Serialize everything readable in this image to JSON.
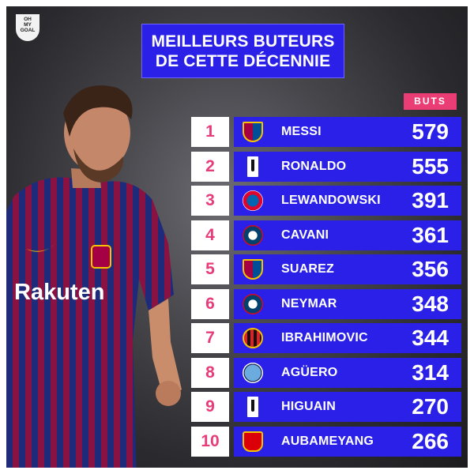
{
  "logo": {
    "line1": "OH",
    "line2": "MY",
    "line3": "GOAL"
  },
  "title": {
    "line1": "MEILLEURS BUTEURS",
    "line2": "DE CETTE DÉCENNIE"
  },
  "column_header": "BUTS",
  "player_sponsor": "Rakuten",
  "rows": [
    {
      "rank": "1",
      "name": "MESSI",
      "goals": "579",
      "crest_icon": "barcelona-crest-icon"
    },
    {
      "rank": "2",
      "name": "RONALDO",
      "goals": "555",
      "crest_icon": "juventus-crest-icon"
    },
    {
      "rank": "3",
      "name": "LEWANDOWSKI",
      "goals": "391",
      "crest_icon": "bayern-crest-icon"
    },
    {
      "rank": "4",
      "name": "CAVANI",
      "goals": "361",
      "crest_icon": "psg-crest-icon"
    },
    {
      "rank": "5",
      "name": "SUAREZ",
      "goals": "356",
      "crest_icon": "barcelona-crest-icon"
    },
    {
      "rank": "6",
      "name": "NEYMAR",
      "goals": "348",
      "crest_icon": "psg-crest-icon"
    },
    {
      "rank": "7",
      "name": "IBRAHIMOVIC",
      "goals": "344",
      "crest_icon": "milan-crest-icon"
    },
    {
      "rank": "8",
      "name": "AGÜERO",
      "goals": "314",
      "crest_icon": "man-city-crest-icon"
    },
    {
      "rank": "9",
      "name": "HIGUAIN",
      "goals": "270",
      "crest_icon": "juventus-crest-icon"
    },
    {
      "rank": "10",
      "name": "AUBAMEYANG",
      "goals": "266",
      "crest_icon": "arsenal-crest-icon"
    }
  ],
  "colors": {
    "bar": "#2a20e8",
    "rank_text": "#e83c7a",
    "header_badge": "#ea3d75"
  }
}
